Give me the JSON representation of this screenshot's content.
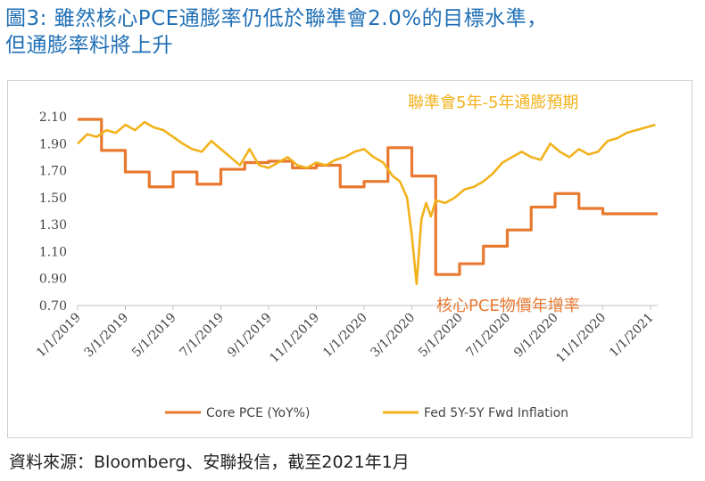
{
  "header": {
    "title_line1": "圖3: 雖然核心PCE通膨率仍低於聯準會2.0%的目標水準，",
    "title_line2": "但通膨率料將上升"
  },
  "source_note": "資料來源：Bloomberg、安聯投信，截至2021年1月",
  "chart_data": {
    "type": "line",
    "title": "",
    "xlabel": "",
    "ylabel": "",
    "ylim": [
      0.7,
      2.1
    ],
    "yticks": [
      "2.10",
      "1.90",
      "1.70",
      "1.50",
      "1.30",
      "1.10",
      "0.90",
      "0.70"
    ],
    "xticks": [
      "1/1/2019",
      "3/1/2019",
      "5/1/2019",
      "7/1/2019",
      "9/1/2019",
      "11/1/2019",
      "1/1/2020",
      "3/1/2020",
      "5/1/2020",
      "7/1/2020",
      "9/1/2020",
      "11/1/2020",
      "1/1/2021"
    ],
    "xrange_months": [
      0,
      24.3
    ],
    "grid": false,
    "legend_position": "bottom",
    "annotations": [
      {
        "text": "聯準會5年-5年通膨預期",
        "series": "Fed 5Y-5Y Fwd Inflation",
        "color": "#f2b21c"
      },
      {
        "text": "核心PCE物價年增率",
        "series": "Core PCE (YoY%)",
        "color": "#e8792f"
      }
    ],
    "series": [
      {
        "name": "Core PCE (YoY%)",
        "color": "#e8792f",
        "step": true,
        "x": [
          0,
          1,
          2,
          3,
          4,
          5,
          6,
          7,
          8,
          9,
          10,
          11,
          12,
          13,
          14,
          15,
          16,
          17,
          18,
          19,
          20,
          21,
          22,
          23,
          24,
          24.3
        ],
        "values": [
          2.08,
          1.85,
          1.69,
          1.58,
          1.69,
          1.6,
          1.71,
          1.76,
          1.77,
          1.72,
          1.74,
          1.58,
          1.62,
          1.87,
          1.66,
          0.93,
          1.01,
          1.14,
          1.26,
          1.43,
          1.53,
          1.42,
          1.38,
          1.38,
          1.38,
          1.38
        ]
      },
      {
        "name": "Fed 5Y-5Y Fwd Inflation",
        "color": "#f2b21c",
        "step": false,
        "x": [
          0,
          0.4,
          0.8,
          1.2,
          1.6,
          2.0,
          2.4,
          2.8,
          3.2,
          3.6,
          4.0,
          4.4,
          4.8,
          5.2,
          5.6,
          6.0,
          6.4,
          6.8,
          7.2,
          7.6,
          8.0,
          8.4,
          8.8,
          9.2,
          9.6,
          10.0,
          10.4,
          10.8,
          11.2,
          11.6,
          12.0,
          12.4,
          12.8,
          13.2,
          13.5,
          13.8,
          14.0,
          14.2,
          14.4,
          14.6,
          14.8,
          15.0,
          15.4,
          15.8,
          16.2,
          16.6,
          17.0,
          17.4,
          17.8,
          18.2,
          18.6,
          19.0,
          19.4,
          19.8,
          20.2,
          20.6,
          21.0,
          21.4,
          21.8,
          22.2,
          22.6,
          23.0,
          23.4,
          23.8,
          24.2
        ],
        "values": [
          1.9,
          1.97,
          1.95,
          2.0,
          1.98,
          2.04,
          2.0,
          2.06,
          2.02,
          2.0,
          1.95,
          1.9,
          1.86,
          1.84,
          1.92,
          1.86,
          1.8,
          1.74,
          1.86,
          1.74,
          1.72,
          1.76,
          1.8,
          1.74,
          1.72,
          1.76,
          1.74,
          1.78,
          1.8,
          1.84,
          1.86,
          1.8,
          1.76,
          1.66,
          1.62,
          1.5,
          1.22,
          0.86,
          1.34,
          1.46,
          1.36,
          1.48,
          1.46,
          1.5,
          1.56,
          1.58,
          1.62,
          1.68,
          1.76,
          1.8,
          1.84,
          1.8,
          1.78,
          1.9,
          1.84,
          1.8,
          1.86,
          1.82,
          1.84,
          1.92,
          1.94,
          1.98,
          2.0,
          2.02,
          2.04
        ]
      }
    ]
  }
}
